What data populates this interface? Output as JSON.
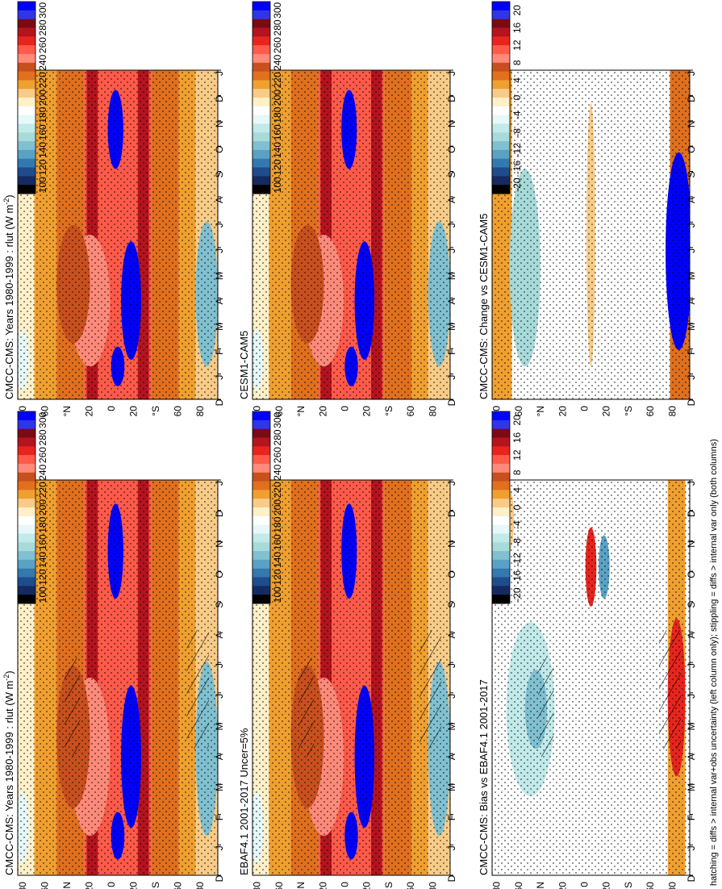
{
  "chart_data": {
    "type": "heatmap",
    "orientation": "figure rotated 90 degrees counter-clockwise",
    "footer": "hatching = diffs > internal var+obs uncertainty (left column only); stippling = diffs > internal var only (both columns)",
    "months": [
      "J",
      "F",
      "M",
      "A",
      "M",
      "J",
      "J",
      "A",
      "S",
      "O",
      "N",
      "D",
      "J"
    ],
    "month_axis_start": "D",
    "latitude_labels": [
      "80",
      "60",
      "°N",
      "20",
      "0",
      "20",
      "°S",
      "60",
      "80"
    ],
    "value_scale": {
      "levels": [
        "300",
        "280",
        "260",
        "240",
        "220",
        "200",
        "180",
        "160",
        "140",
        "120",
        "100"
      ]
    },
    "diff_scale": {
      "levels": [
        "20",
        "16",
        "12",
        "8",
        "4",
        "0",
        "-4",
        "-8",
        "-12",
        "-16",
        "-20"
      ]
    },
    "colors": {
      "ramp": [
        "#0000ff",
        "#2e36e6",
        "#7a0a14",
        "#b3141e",
        "#e8241e",
        "#ff5a4a",
        "#ff8a7a",
        "#c8501e",
        "#e0701e",
        "#f0a030",
        "#f8cc88",
        "#fff0c8",
        "#ffffff",
        "#e6f8f8",
        "#c2eaea",
        "#a8dada",
        "#80c0d0",
        "#5aa2c4",
        "#3478b0",
        "#1e4c8c",
        "#142a60",
        "#000000"
      ]
    },
    "panels": [
      {
        "title": "CMCC-CMS: Years 1980-1999 : rlut (W m",
        "title_sup": "-2",
        "title_tail": ")",
        "scale": "value",
        "hatching": true,
        "stipple": true
      },
      {
        "title": "CMCC-CMS: Years 1980-1999 : rlut (W m",
        "title_sup": "-2",
        "title_tail": ")",
        "scale": "value",
        "hatching": false,
        "stipple": true
      },
      {
        "title": "EBAF4.1 2001-2017 Uncer=5%",
        "scale": "value",
        "hatching": true,
        "stipple": true
      },
      {
        "title": "CESM1-CAM5",
        "scale": "value",
        "hatching": false,
        "stipple": true
      },
      {
        "title": "CMCC-CMS: Bias vs EBAF4.1 2001-2017",
        "scale": "diff",
        "hatching": true,
        "stipple": true
      },
      {
        "title": "CMCC-CMS: Change vs CESM1-CAM5",
        "scale": "diff",
        "hatching": false,
        "stipple": true
      }
    ]
  }
}
